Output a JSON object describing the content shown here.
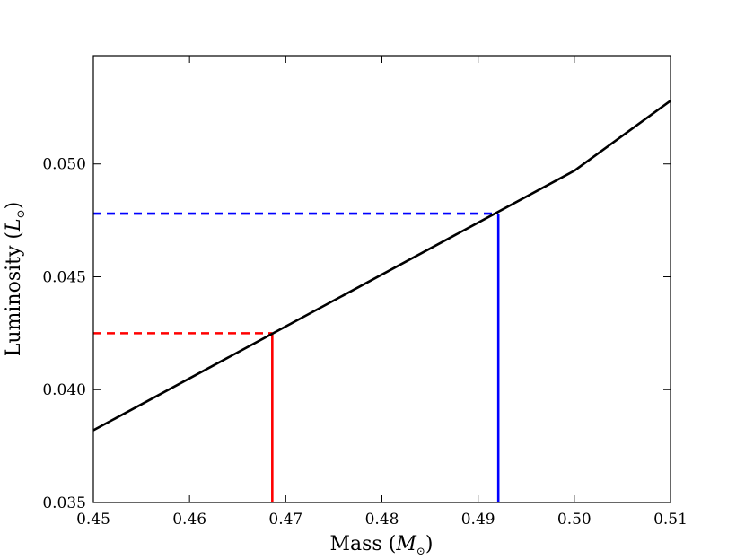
{
  "chart_data": {
    "type": "line",
    "xlabel": "Mass ($M_{\\odot}$)",
    "ylabel": "Luminosity ($L_{\\odot}$)",
    "xlabel_main": "Mass (",
    "xlabel_sym": "M",
    "xlabel_sub": "⊙",
    "xlabel_close": ")",
    "ylabel_main": "Luminosity (",
    "ylabel_sym": "L",
    "ylabel_sub": "⊙",
    "ylabel_close": ")",
    "xlim": [
      0.45,
      0.51
    ],
    "ylim": [
      0.035,
      0.0548
    ],
    "x_ticks": [
      0.45,
      0.46,
      0.47,
      0.48,
      0.49,
      0.5,
      0.51
    ],
    "x_tick_labels": [
      "0.45",
      "0.46",
      "0.47",
      "0.48",
      "0.49",
      "0.50",
      "0.51"
    ],
    "y_ticks": [
      0.035,
      0.04,
      0.045,
      0.05
    ],
    "y_tick_labels": [
      "0.035",
      "0.040",
      "0.045",
      "0.050"
    ],
    "grid": false,
    "series": [
      {
        "color": "#000000",
        "style": "solid",
        "x": [
          0.45,
          0.5,
          0.51
        ],
        "y": [
          0.0382,
          0.0497,
          0.0528
        ]
      }
    ],
    "markers": [
      {
        "color": "#ff0000",
        "x": 0.4686,
        "y": 0.0425
      },
      {
        "color": "#0000ff",
        "x": 0.4921,
        "y": 0.0478
      }
    ]
  }
}
